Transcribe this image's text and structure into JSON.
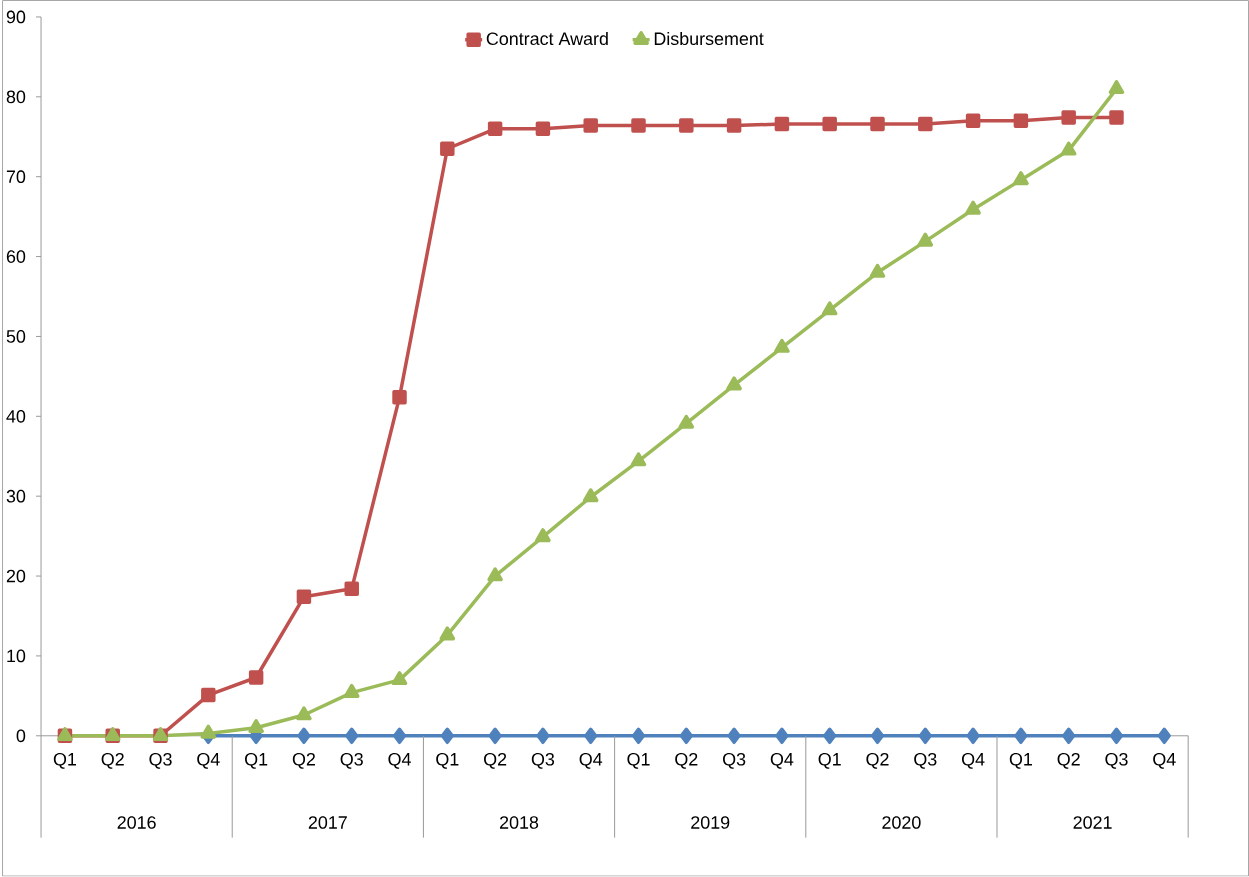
{
  "chart_data": {
    "type": "line",
    "categories": [
      "Q1",
      "Q2",
      "Q3",
      "Q4",
      "Q1",
      "Q2",
      "Q3",
      "Q4",
      "Q1",
      "Q2",
      "Q3",
      "Q4",
      "Q1",
      "Q2",
      "Q3",
      "Q4",
      "Q1",
      "Q2",
      "Q3",
      "Q4",
      "Q1",
      "Q2",
      "Q3",
      "Q4"
    ],
    "series": [
      {
        "color": "#4f81bd",
        "marker": "diamond",
        "values": [
          null,
          null,
          null,
          0,
          0,
          0,
          0,
          0,
          0,
          0,
          0,
          0,
          0,
          0,
          0,
          0,
          0,
          0,
          0,
          0,
          0,
          0,
          0,
          0
        ]
      },
      {
        "name": "Contract Award",
        "color": "#c0504d",
        "marker": "square",
        "values": [
          0,
          0,
          0,
          5.1,
          7.3,
          17.4,
          18.4,
          42.4,
          73.5,
          76,
          76,
          76.4,
          76.4,
          76.4,
          76.4,
          76.6,
          76.6,
          76.6,
          76.6,
          77,
          77,
          77.4,
          77.4,
          null
        ]
      },
      {
        "name": "Disbursement",
        "color": "#9bbb59",
        "marker": "triangle",
        "values": [
          0,
          0,
          0,
          0.3,
          1,
          2.6,
          5.4,
          7,
          12.6,
          20,
          24.9,
          29.9,
          34.4,
          39.1,
          43.9,
          48.6,
          53.3,
          58,
          61.9,
          65.9,
          69.6,
          73.3,
          81,
          null
        ]
      }
    ],
    "annotations": [
      "2016",
      "2017",
      "2018",
      "2019",
      "2020",
      "2021"
    ],
    "ylim": [
      0,
      90
    ],
    "yticks": [
      0,
      10,
      20,
      30,
      40,
      50,
      60,
      70,
      80,
      90
    ],
    "legend": "top",
    "grid": false
  }
}
